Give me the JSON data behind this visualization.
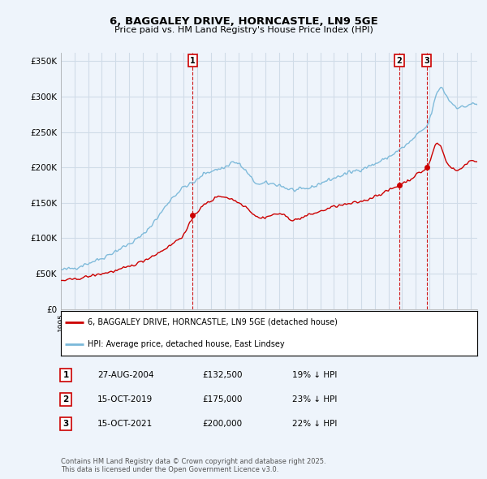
{
  "title": "6, BAGGALEY DRIVE, HORNCASTLE, LN9 5GE",
  "subtitle": "Price paid vs. HM Land Registry's House Price Index (HPI)",
  "ylabel_ticks": [
    "£0",
    "£50K",
    "£100K",
    "£150K",
    "£200K",
    "£250K",
    "£300K",
    "£350K"
  ],
  "ytick_vals": [
    0,
    50000,
    100000,
    150000,
    200000,
    250000,
    300000,
    350000
  ],
  "ylim": [
    0,
    362000
  ],
  "xlim_start": 1995.0,
  "xlim_end": 2025.5,
  "hpi_color": "#7ab8d9",
  "price_color": "#cc0000",
  "grid_color": "#d0dce8",
  "bg_color": "#eef4fb",
  "sale_color": "#cc0000",
  "transactions": [
    {
      "label": "1",
      "date_x": 2004.65,
      "price": 132500
    },
    {
      "label": "2",
      "date_x": 2019.79,
      "price": 175000
    },
    {
      "label": "3",
      "date_x": 2021.79,
      "price": 200000
    }
  ],
  "legend_entries": [
    {
      "label": "6, BAGGALEY DRIVE, HORNCASTLE, LN9 5GE (detached house)",
      "color": "#cc0000"
    },
    {
      "label": "HPI: Average price, detached house, East Lindsey",
      "color": "#7ab8d9"
    }
  ],
  "table_rows": [
    {
      "num": "1",
      "date": "27-AUG-2004",
      "price": "£132,500",
      "pct": "19% ↓ HPI"
    },
    {
      "num": "2",
      "date": "15-OCT-2019",
      "price": "£175,000",
      "pct": "23% ↓ HPI"
    },
    {
      "num": "3",
      "date": "15-OCT-2021",
      "price": "£200,000",
      "pct": "22% ↓ HPI"
    }
  ],
  "footnote": "Contains HM Land Registry data © Crown copyright and database right 2025.\nThis data is licensed under the Open Government Licence v3.0."
}
